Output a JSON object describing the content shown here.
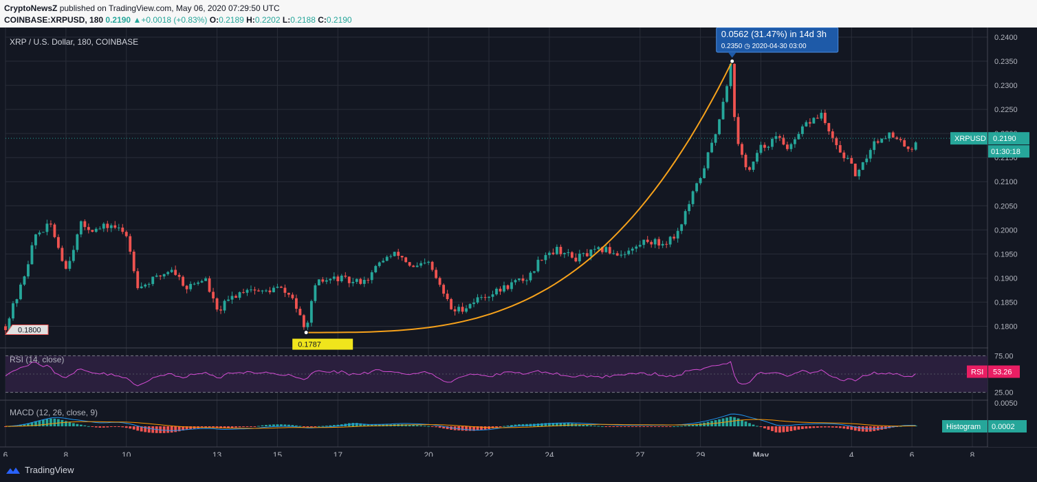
{
  "header": {
    "publisher": "CryptoNewsZ",
    "published_text": "published on TradingView.com, May 06, 2020 07:29:50 UTC",
    "symbol": "COINBASE:XRPUSD, 180",
    "last": "0.2190",
    "change": "+0.0018 (+0.83%)",
    "o_label": "O:",
    "o": "0.2189",
    "h_label": "H:",
    "h": "0.2202",
    "l_label": "L:",
    "l": "0.2188",
    "c_label": "C:",
    "c": "0.2190"
  },
  "chart_title": "XRP / U.S. Dollar, 180, COINBASE",
  "rsi_label": "RSI (14, close)",
  "macd_label": "MACD (12, 26, close, 9)",
  "current_price_tag": {
    "symbol": "XRPUSD",
    "price": "0.2190",
    "countdown": "01:30:18"
  },
  "rsi_tag": {
    "name": "RSI",
    "value": "53.26"
  },
  "macd_tag": {
    "name": "Histogram",
    "value": "0.0002"
  },
  "measure": {
    "headline": "0.0562 (31.47%) in 14d 3h",
    "detail_price": "0.2350",
    "detail_date": "2020-04-30  03:00",
    "low_label": "0.1787"
  },
  "left_price_label": "0.1800",
  "footer": {
    "brand": "TradingView"
  },
  "colors": {
    "up": "#26a69a",
    "down": "#ef5350",
    "bg": "#131722",
    "curve": "#f7a21b",
    "rsi_line": "#d64dd6",
    "measure": "#1e5aa8"
  },
  "chart_data": {
    "type": "candlestick",
    "title": "XRP / U.S. Dollar, 180, COINBASE",
    "y_ticks": [
      "0.1800",
      "0.1850",
      "0.1900",
      "0.1950",
      "0.2000",
      "0.2050",
      "0.2100",
      "0.2150",
      "0.2200",
      "0.2250",
      "0.2300",
      "0.2350",
      "0.2400"
    ],
    "ylim": [
      0.1755,
      0.242
    ],
    "x_ticks": [
      {
        "label": "6",
        "day": 0
      },
      {
        "label": "8",
        "day": 2
      },
      {
        "label": "10",
        "day": 4
      },
      {
        "label": "13",
        "day": 7
      },
      {
        "label": "15",
        "day": 9
      },
      {
        "label": "17",
        "day": 11
      },
      {
        "label": "20",
        "day": 14
      },
      {
        "label": "22",
        "day": 16
      },
      {
        "label": "24",
        "day": 18
      },
      {
        "label": "27",
        "day": 21
      },
      {
        "label": "29",
        "day": 23
      },
      {
        "label": "May",
        "day": 25
      },
      {
        "label": "4",
        "day": 28
      },
      {
        "label": "6",
        "day": 30
      },
      {
        "label": "8",
        "day": 32
      }
    ],
    "xlim_days": [
      0.0,
      32.5
    ],
    "price_path": [
      [
        0.0,
        0.18
      ],
      [
        0.5,
        0.188
      ],
      [
        1.0,
        0.199
      ],
      [
        1.5,
        0.201
      ],
      [
        2.0,
        0.192
      ],
      [
        2.5,
        0.201
      ],
      [
        3.0,
        0.2
      ],
      [
        3.5,
        0.201
      ],
      [
        4.0,
        0.199
      ],
      [
        4.4,
        0.188
      ],
      [
        5.0,
        0.19
      ],
      [
        5.5,
        0.192
      ],
      [
        6.0,
        0.188
      ],
      [
        6.6,
        0.19
      ],
      [
        7.0,
        0.183
      ],
      [
        7.5,
        0.186
      ],
      [
        8.0,
        0.188
      ],
      [
        8.5,
        0.187
      ],
      [
        9.0,
        0.188
      ],
      [
        9.5,
        0.186
      ],
      [
        9.9,
        0.179
      ],
      [
        10.3,
        0.189
      ],
      [
        11.0,
        0.19
      ],
      [
        11.5,
        0.189
      ],
      [
        12.0,
        0.19
      ],
      [
        12.5,
        0.194
      ],
      [
        13.0,
        0.195
      ],
      [
        13.5,
        0.192
      ],
      [
        14.0,
        0.193
      ],
      [
        14.4,
        0.188
      ],
      [
        14.8,
        0.183
      ],
      [
        15.2,
        0.184
      ],
      [
        15.7,
        0.186
      ],
      [
        16.2,
        0.187
      ],
      [
        16.8,
        0.189
      ],
      [
        17.3,
        0.19
      ],
      [
        17.8,
        0.195
      ],
      [
        18.3,
        0.196
      ],
      [
        18.8,
        0.194
      ],
      [
        19.3,
        0.195
      ],
      [
        19.8,
        0.196
      ],
      [
        20.3,
        0.195
      ],
      [
        20.8,
        0.196
      ],
      [
        21.2,
        0.198
      ],
      [
        21.7,
        0.197
      ],
      [
        22.2,
        0.199
      ],
      [
        22.6,
        0.205
      ],
      [
        23.0,
        0.211
      ],
      [
        23.5,
        0.22
      ],
      [
        24.0,
        0.234
      ],
      [
        24.2,
        0.218
      ],
      [
        24.6,
        0.212
      ],
      [
        25.0,
        0.217
      ],
      [
        25.5,
        0.219
      ],
      [
        26.0,
        0.217
      ],
      [
        26.5,
        0.222
      ],
      [
        27.0,
        0.224
      ],
      [
        27.4,
        0.218
      ],
      [
        27.8,
        0.215
      ],
      [
        28.2,
        0.211
      ],
      [
        28.7,
        0.218
      ],
      [
        29.2,
        0.22
      ],
      [
        29.6,
        0.218
      ],
      [
        30.0,
        0.217
      ],
      [
        30.2,
        0.219
      ]
    ],
    "measure_from": {
      "day": 9.95,
      "price": 0.1787
    },
    "measure_to": {
      "day": 24.05,
      "price": 0.235
    },
    "rsi": {
      "upper": 75,
      "lower": 25,
      "last": 53.26
    },
    "macd": {
      "fast": 12,
      "slow": 26,
      "signal": 9,
      "histogram_last": 0.0002
    }
  }
}
